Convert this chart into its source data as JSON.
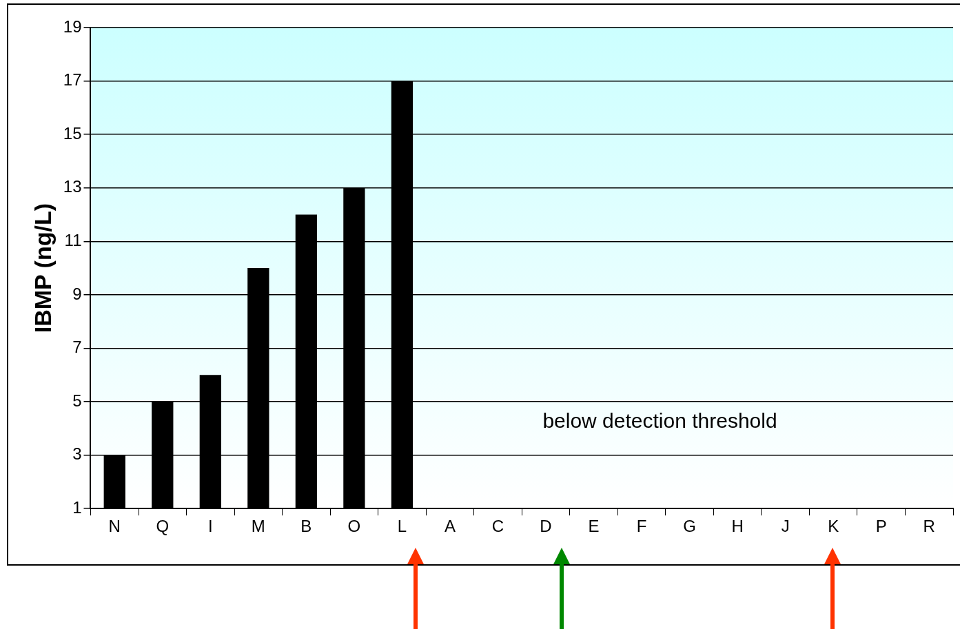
{
  "chart_data": {
    "type": "bar",
    "ylabel": "IBMP (ng/L)",
    "categories": [
      "N",
      "Q",
      "I",
      "M",
      "B",
      "O",
      "L",
      "A",
      "C",
      "D",
      "E",
      "F",
      "G",
      "H",
      "J",
      "K",
      "P",
      "R"
    ],
    "values": [
      3,
      5,
      6,
      10,
      12,
      13,
      17,
      null,
      null,
      null,
      null,
      null,
      null,
      null,
      null,
      null,
      null,
      null
    ],
    "color": "#000000",
    "ylim": [
      1,
      19
    ],
    "yticks": [
      1,
      3,
      5,
      7,
      9,
      11,
      13,
      15,
      17,
      19
    ],
    "grid": "y",
    "legend": false,
    "annotations": [
      "below detection threshold"
    ]
  }
}
